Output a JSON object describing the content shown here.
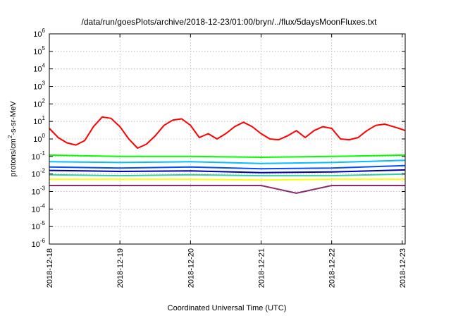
{
  "chart_data": {
    "type": "line",
    "title": "/data/run/goesPlots/archive/2018-12-23/01:00/bryn/../flux/5daysMoonFluxes.txt",
    "xlabel": "Coordinated Universal Time (UTC)",
    "ylabel": "protons/cm²-s-sr-MeV",
    "ylabel_base": "protons/cm",
    "ylabel_sup": "2",
    "ylabel_rest": "-s-sr-MeV",
    "yscale": "log",
    "ylim": [
      1e-06,
      1000000.0
    ],
    "y_ticks": [
      {
        "base": "10",
        "exp": "6"
      },
      {
        "base": "10",
        "exp": "5"
      },
      {
        "base": "10",
        "exp": "4"
      },
      {
        "base": "10",
        "exp": "3"
      },
      {
        "base": "10",
        "exp": "2"
      },
      {
        "base": "10",
        "exp": "1"
      },
      {
        "base": "10",
        "exp": "0"
      },
      {
        "base": "10",
        "exp": "-1"
      },
      {
        "base": "10",
        "exp": "-2"
      },
      {
        "base": "10",
        "exp": "-3"
      },
      {
        "base": "10",
        "exp": "-4"
      },
      {
        "base": "10",
        "exp": "-5"
      },
      {
        "base": "10",
        "exp": "-6"
      }
    ],
    "x_ticks": [
      "2018-12-18",
      "2018-12-19",
      "2018-12-20",
      "2018-12-21",
      "2018-12-22",
      "2018-12-23"
    ],
    "xlim": [
      "2018-12-18T00:00",
      "2018-12-23T01:00"
    ],
    "grid": true,
    "series": [
      {
        "color": "#ff0000",
        "points": [
          [
            "2018-12-18T00:00",
            4.0
          ],
          [
            "2018-12-18T03:00",
            1.2
          ],
          [
            "2018-12-18T06:00",
            0.6
          ],
          [
            "2018-12-18T09:00",
            0.45
          ],
          [
            "2018-12-18T12:00",
            0.8
          ],
          [
            "2018-12-18T15:00",
            5.0
          ],
          [
            "2018-12-18T18:00",
            18
          ],
          [
            "2018-12-18T21:00",
            15
          ],
          [
            "2018-12-19T00:00",
            5.0
          ],
          [
            "2018-12-19T03:00",
            1.0
          ],
          [
            "2018-12-19T06:00",
            0.3
          ],
          [
            "2018-12-19T09:00",
            0.5
          ],
          [
            "2018-12-19T12:00",
            1.5
          ],
          [
            "2018-12-19T15:00",
            6.0
          ],
          [
            "2018-12-19T18:00",
            12
          ],
          [
            "2018-12-19T21:00",
            14
          ],
          [
            "2018-12-20T00:00",
            6.0
          ],
          [
            "2018-12-20T03:00",
            1.2
          ],
          [
            "2018-12-20T06:00",
            2.0
          ],
          [
            "2018-12-20T09:00",
            1.0
          ],
          [
            "2018-12-20T12:00",
            2.0
          ],
          [
            "2018-12-20T15:00",
            5.0
          ],
          [
            "2018-12-20T18:00",
            9.0
          ],
          [
            "2018-12-20T21:00",
            5.0
          ],
          [
            "2018-12-21T00:00",
            2.0
          ],
          [
            "2018-12-21T03:00",
            1.0
          ],
          [
            "2018-12-21T06:00",
            0.9
          ],
          [
            "2018-12-21T09:00",
            1.5
          ],
          [
            "2018-12-21T12:00",
            3.0
          ],
          [
            "2018-12-21T15:00",
            1.2
          ],
          [
            "2018-12-21T18:00",
            3.0
          ],
          [
            "2018-12-21T21:00",
            5.0
          ],
          [
            "2018-12-22T00:00",
            4.0
          ],
          [
            "2018-12-22T03:00",
            1.0
          ],
          [
            "2018-12-22T06:00",
            0.9
          ],
          [
            "2018-12-22T09:00",
            1.2
          ],
          [
            "2018-12-22T12:00",
            3.0
          ],
          [
            "2018-12-22T15:00",
            6.0
          ],
          [
            "2018-12-22T18:00",
            7.0
          ],
          [
            "2018-12-22T21:00",
            5.0
          ],
          [
            "2018-12-23T00:00",
            3.5
          ],
          [
            "2018-12-23T01:00",
            3.0
          ]
        ]
      },
      {
        "color": "#00ff00",
        "points": [
          [
            "2018-12-18T00:00",
            0.12
          ],
          [
            "2018-12-19T00:00",
            0.1
          ],
          [
            "2018-12-20T00:00",
            0.1
          ],
          [
            "2018-12-21T00:00",
            0.09
          ],
          [
            "2018-12-22T00:00",
            0.1
          ],
          [
            "2018-12-23T01:00",
            0.12
          ]
        ]
      },
      {
        "color": "#00bfff",
        "points": [
          [
            "2018-12-18T00:00",
            0.05
          ],
          [
            "2018-12-19T00:00",
            0.045
          ],
          [
            "2018-12-20T00:00",
            0.05
          ],
          [
            "2018-12-21T00:00",
            0.04
          ],
          [
            "2018-12-22T00:00",
            0.045
          ],
          [
            "2018-12-23T01:00",
            0.06
          ]
        ]
      },
      {
        "color": "#0050ff",
        "points": [
          [
            "2018-12-18T00:00",
            0.025
          ],
          [
            "2018-12-19T00:00",
            0.022
          ],
          [
            "2018-12-20T00:00",
            0.025
          ],
          [
            "2018-12-21T00:00",
            0.02
          ],
          [
            "2018-12-22T00:00",
            0.022
          ],
          [
            "2018-12-23T01:00",
            0.03
          ]
        ]
      },
      {
        "color": "#0000b0",
        "points": [
          [
            "2018-12-18T00:00",
            0.016
          ],
          [
            "2018-12-19T00:00",
            0.014
          ],
          [
            "2018-12-20T00:00",
            0.015
          ],
          [
            "2018-12-21T00:00",
            0.012
          ],
          [
            "2018-12-22T00:00",
            0.013
          ],
          [
            "2018-12-23T01:00",
            0.017
          ]
        ]
      },
      {
        "color": "#30d0a0",
        "points": [
          [
            "2018-12-18T00:00",
            0.009
          ],
          [
            "2018-12-19T00:00",
            0.008
          ],
          [
            "2018-12-20T00:00",
            0.009
          ],
          [
            "2018-12-21T00:00",
            0.008
          ],
          [
            "2018-12-22T00:00",
            0.008
          ],
          [
            "2018-12-23T01:00",
            0.01
          ]
        ]
      },
      {
        "color": "#ffff00",
        "points": [
          [
            "2018-12-18T00:00",
            0.005
          ],
          [
            "2018-12-19T00:00",
            0.005
          ],
          [
            "2018-12-20T00:00",
            0.005
          ],
          [
            "2018-12-21T00:00",
            0.0045
          ],
          [
            "2018-12-22T00:00",
            0.005
          ],
          [
            "2018-12-23T01:00",
            0.005
          ]
        ]
      },
      {
        "color": "#8b2c6e",
        "points": [
          [
            "2018-12-18T00:00",
            0.0022
          ],
          [
            "2018-12-19T00:00",
            0.0022
          ],
          [
            "2018-12-20T00:00",
            0.0022
          ],
          [
            "2018-12-21T00:00",
            0.0022
          ],
          [
            "2018-12-21T12:00",
            0.0008
          ],
          [
            "2018-12-22T00:00",
            0.0022
          ],
          [
            "2018-12-23T01:00",
            0.0022
          ]
        ]
      }
    ]
  }
}
